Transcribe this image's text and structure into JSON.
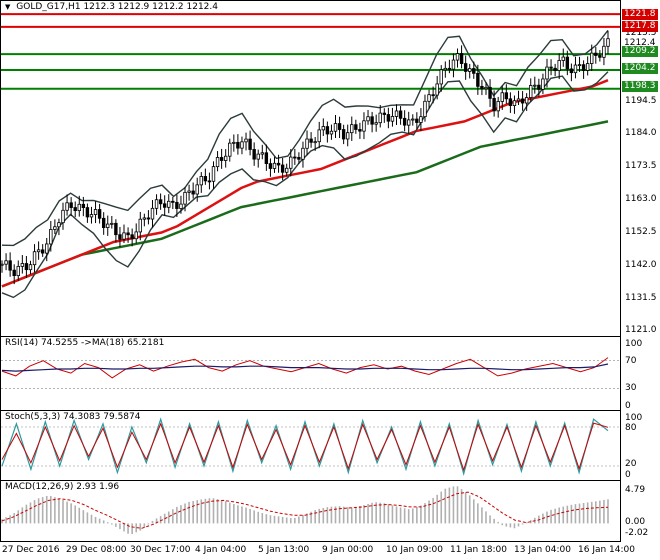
{
  "symbol_header": {
    "symbol": "GOLD_G17,H1",
    "ohlc": "1212.3 1212.9 1212.2 1212.4"
  },
  "price_axis": [
    "1215.5",
    "1194.5",
    "1184.0",
    "1173.5",
    "1163.0",
    "1152.5",
    "1142.0",
    "1131.5",
    "1121.0"
  ],
  "price_tags": [
    {
      "value": "1221.8",
      "style": "red"
    },
    {
      "value": "1217.8",
      "style": "red"
    },
    {
      "value": "1212.4",
      "style": "white"
    },
    {
      "value": "1209.2",
      "style": "green"
    },
    {
      "value": "1204.2",
      "style": "green"
    },
    {
      "value": "1198.3",
      "style": "green"
    }
  ],
  "rsi_panel": {
    "label": "RSI(14) 74.5255  ->MA(18) 65.2181",
    "axis": [
      "100",
      "70",
      "30",
      "0"
    ]
  },
  "stoch_panel": {
    "label": "Stoch(5,3,3) 74.3083 79.5874",
    "axis": [
      "100",
      "80",
      "20",
      "0"
    ]
  },
  "macd_panel": {
    "label": "MACD(12,26,9) 2.93 1.96",
    "axis": [
      "4.79",
      "0.00",
      "-2.02"
    ]
  },
  "time_axis": [
    "27 Dec 2016",
    "29 Dec 08:00",
    "30 Dec 17:00",
    "4 Jan 04:00",
    "5 Jan 13:00",
    "9 Jan 00:00",
    "10 Jan 09:00",
    "11 Jan 18:00",
    "13 Jan 04:00",
    "16 Jan 14:00"
  ],
  "colors": {
    "resistance_line": "#e00000",
    "support_line": "#008000",
    "ma_fast": "#dd1111",
    "ma_slow": "#1a6b1a",
    "bands": "#2b3b3b",
    "rsi": "#cc0000",
    "rsi_ma": "#1b1b6b",
    "stoch_main": "#2a9aa0",
    "stoch_signal": "#cc0000",
    "macd_hist": "#b0b0b0",
    "macd_signal": "#cc0000"
  },
  "chart_data": [
    {
      "type": "candlestick",
      "title": "GOLD_G17,H1",
      "ylim": [
        1121.0,
        1225.0
      ],
      "horizontal_levels": [
        {
          "value": 1221.8,
          "color": "red"
        },
        {
          "value": 1217.8,
          "color": "red"
        },
        {
          "value": 1209.2,
          "color": "green"
        },
        {
          "value": 1204.2,
          "color": "green"
        },
        {
          "value": 1198.3,
          "color": "green"
        }
      ],
      "last_price": 1212.4,
      "x_ticks": [
        "27 Dec 2016",
        "29 Dec 08:00",
        "30 Dec 17:00",
        "4 Jan 04:00",
        "5 Jan 13:00",
        "9 Jan 00:00",
        "10 Jan 09:00",
        "11 Jan 18:00",
        "13 Jan 04:00",
        "16 Jan 14:00"
      ],
      "close_path": [
        1143,
        1141,
        1142,
        1146,
        1150,
        1158,
        1162,
        1160,
        1159,
        1156,
        1153,
        1151,
        1155,
        1160,
        1163,
        1161,
        1164,
        1168,
        1170,
        1176,
        1180,
        1182,
        1178,
        1176,
        1173,
        1174,
        1178,
        1182,
        1185,
        1186,
        1184,
        1186,
        1188,
        1189,
        1190,
        1189,
        1187,
        1193,
        1200,
        1206,
        1208,
        1203,
        1199,
        1193,
        1196,
        1193,
        1197,
        1200,
        1205,
        1207,
        1204,
        1206,
        1209,
        1212.4
      ],
      "ma_fast": [
        1136,
        1138,
        1140,
        1142,
        1144,
        1146,
        1148,
        1150,
        1151,
        1152,
        1153,
        1155,
        1158,
        1161,
        1164,
        1167,
        1169,
        1170,
        1171,
        1172,
        1173,
        1175,
        1177,
        1179,
        1181,
        1183,
        1185,
        1186,
        1187,
        1188,
        1190,
        1192,
        1194,
        1195,
        1196,
        1197,
        1198,
        1199,
        1201
      ],
      "ma_slow": [
        1136,
        1138,
        1140,
        1142,
        1144,
        1146,
        1147,
        1148,
        1149,
        1150,
        1151,
        1153,
        1155,
        1157,
        1159,
        1161,
        1162,
        1163,
        1164,
        1165,
        1166,
        1167,
        1168,
        1169,
        1170,
        1171,
        1172,
        1174,
        1176,
        1178,
        1180,
        1181,
        1182,
        1183,
        1184,
        1185,
        1186,
        1187,
        1188
      ]
    },
    {
      "type": "line",
      "title": "RSI(14) 74.5255  ->MA(18) 65.2181",
      "ylim": [
        0,
        100
      ],
      "levels": [
        30,
        70
      ],
      "series": [
        {
          "name": "RSI(14)",
          "values": [
            55,
            48,
            62,
            70,
            58,
            52,
            66,
            60,
            45,
            58,
            64,
            55,
            62,
            68,
            72,
            60,
            55,
            64,
            70,
            62,
            58,
            54,
            60,
            66,
            58,
            52,
            60,
            64,
            58,
            62,
            55,
            50,
            58,
            66,
            72,
            60,
            48,
            52,
            58,
            62,
            66,
            60,
            54,
            60,
            74.5
          ]
        },
        {
          "name": "MA(18)",
          "values": [
            56,
            55,
            56,
            57,
            58,
            58,
            59,
            59,
            58,
            58,
            59,
            59,
            60,
            61,
            62,
            62,
            61,
            61,
            62,
            62,
            61,
            60,
            60,
            60,
            59,
            58,
            58,
            59,
            59,
            59,
            58,
            57,
            57,
            58,
            59,
            59,
            58,
            57,
            57,
            58,
            59,
            60,
            60,
            61,
            65.2
          ]
        }
      ]
    },
    {
      "type": "line",
      "title": "Stoch(5,3,3) 74.3083 79.5874",
      "ylim": [
        0,
        100
      ],
      "levels": [
        20,
        80
      ],
      "series": [
        {
          "name": "%K",
          "values": [
            20,
            85,
            15,
            88,
            20,
            90,
            30,
            85,
            10,
            80,
            25,
            92,
            18,
            85,
            20,
            88,
            12,
            90,
            25,
            82,
            15,
            88,
            20,
            85,
            10,
            90,
            25,
            80,
            15,
            88,
            20,
            85,
            8,
            90,
            22,
            84,
            12,
            88,
            20,
            86,
            10,
            92,
            74.3
          ]
        },
        {
          "name": "%D",
          "values": [
            30,
            70,
            25,
            80,
            28,
            82,
            35,
            78,
            18,
            72,
            30,
            85,
            25,
            80,
            26,
            82,
            18,
            84,
            30,
            76,
            22,
            82,
            26,
            80,
            16,
            84,
            30,
            76,
            22,
            82,
            26,
            80,
            14,
            84,
            28,
            80,
            18,
            82,
            26,
            82,
            16,
            86,
            79.6
          ]
        }
      ]
    },
    {
      "type": "bar",
      "title": "MACD(12,26,9) 2.93 1.96",
      "ylim": [
        -2.02,
        4.79
      ],
      "series": [
        {
          "name": "MACD",
          "values": [
            0.5,
            1.2,
            2.2,
            3.0,
            3.4,
            3.0,
            2.4,
            1.6,
            0.8,
            0.2,
            -0.6,
            -1.4,
            -0.8,
            0.4,
            1.2,
            2.0,
            2.6,
            2.9,
            3.1,
            2.8,
            2.3,
            1.9,
            1.4,
            1.0,
            0.8,
            0.6,
            1.1,
            1.7,
            2.0,
            2.1,
            1.9,
            2.2,
            2.6,
            2.4,
            2.0,
            1.7,
            2.2,
            3.1,
            4.2,
            4.6,
            3.6,
            2.2,
            0.8,
            -0.3,
            -0.6,
            0.1,
            0.9,
            1.6,
            2.0,
            2.3,
            2.5,
            2.7,
            2.93
          ]
        },
        {
          "name": "Signal",
          "values": [
            0.3,
            0.8,
            1.5,
            2.2,
            2.8,
            3.0,
            2.8,
            2.3,
            1.6,
            1.0,
            0.3,
            -0.4,
            -0.6,
            -0.1,
            0.6,
            1.3,
            1.9,
            2.4,
            2.7,
            2.8,
            2.6,
            2.3,
            1.9,
            1.5,
            1.2,
            1.0,
            1.0,
            1.3,
            1.6,
            1.8,
            1.9,
            2.0,
            2.2,
            2.3,
            2.2,
            2.0,
            2.0,
            2.4,
            3.0,
            3.6,
            3.8,
            3.2,
            2.2,
            1.2,
            0.4,
            0.1,
            0.4,
            0.9,
            1.3,
            1.6,
            1.8,
            1.9,
            1.96
          ]
        }
      ]
    }
  ]
}
